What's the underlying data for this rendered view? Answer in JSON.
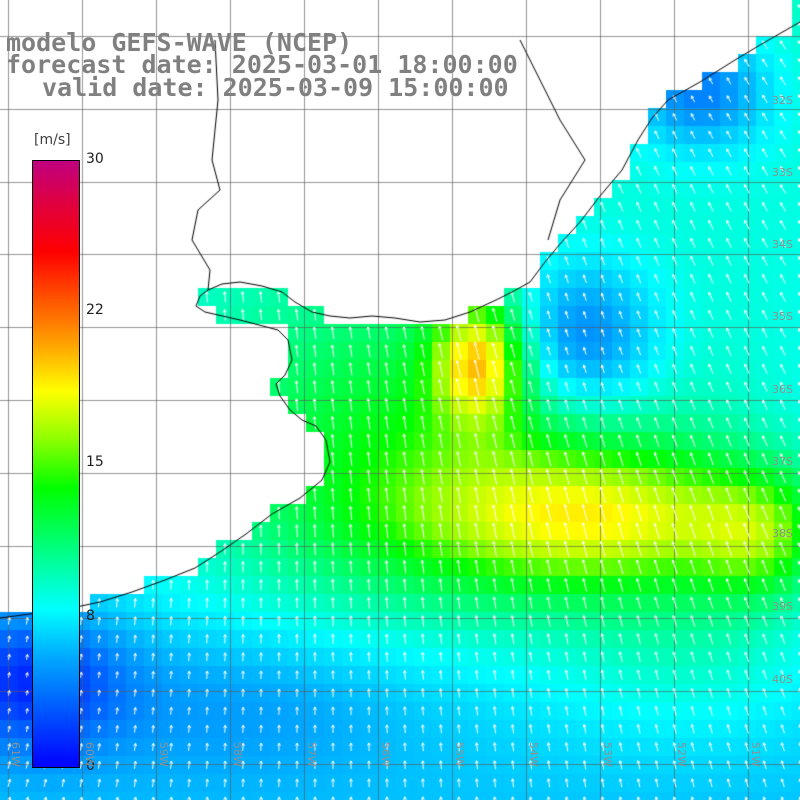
{
  "title": {
    "line1": "modelo GEFS-WAVE (NCEP)",
    "line2": "forecast date: 2025-03-01 18:00:00",
    "line3": "valid date: 2025-03-09 15:00:00"
  },
  "colorbar": {
    "unit": "[m/s]",
    "ticks": [
      {
        "label": "30",
        "value": 30
      },
      {
        "label": "22",
        "value": 22
      },
      {
        "label": "15",
        "value": 15
      },
      {
        "label": "8",
        "value": 8
      },
      {
        "label": "0",
        "value": 0
      }
    ],
    "colors": [
      "#0000ff",
      "#00ffff",
      "#00ff00",
      "#ffff00",
      "#ff0000",
      "#c00080"
    ]
  },
  "lat_labels": [
    "32S",
    "33S",
    "34S",
    "35S",
    "36S",
    "37S",
    "38S",
    "39S",
    "40S"
  ],
  "lon_labels": [
    "61W",
    "60W",
    "59W",
    "58W",
    "57W",
    "56W",
    "55W",
    "54W",
    "53W",
    "52W",
    "51W"
  ]
}
